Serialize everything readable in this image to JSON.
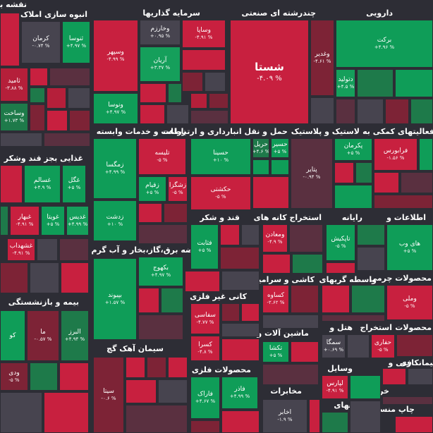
{
  "colors": {
    "background": "#2d2d35",
    "green_strong": "#0f9d58",
    "green": "#159f5b",
    "green_dark": "#1e7a4a",
    "green_muted": "#2e6e4c",
    "red_strong": "#c8203f",
    "red": "#b51f3a",
    "red_dark": "#7d2336",
    "red_muted": "#5a3040",
    "neutral": "#47444f"
  },
  "sectors": [
    {
      "label": "نقشه بازار"
    },
    {
      "label": "انبوه سازی املاک و مستغلات"
    },
    {
      "label": "سرمایه گذاریها"
    },
    {
      "label": "چندرشته ای صنعتی"
    },
    {
      "label": "دارویی"
    },
    {
      "label": "غذایی بجز قند وشکر"
    },
    {
      "label": "زراعت و خدمات وابسته"
    },
    {
      "label": "حمل و نقل انبارداری و ارتباطات"
    },
    {
      "label": "لاستیک و پلاستیک"
    },
    {
      "label": "فعالیتهای کمکی به"
    },
    {
      "label": "قند و شکر"
    },
    {
      "label": "استخراج کانه های"
    },
    {
      "label": "رایانه"
    },
    {
      "label": "اطلاعات و"
    },
    {
      "label": "عرضه برق،گاز،بخار و آب گرم"
    },
    {
      "label": "محصولات چرمی"
    },
    {
      "label": "بیمه و بازنشستگی"
    },
    {
      "label": "کاشی و سرامیک"
    },
    {
      "label": "واسطه گریهای"
    },
    {
      "label": "کانی غیر فلزی"
    },
    {
      "label": "هتل و"
    },
    {
      "label": "استخراج"
    },
    {
      "label": "محصولات"
    },
    {
      "label": "ماشین آلات و"
    },
    {
      "label": "سیمان آهک گچ"
    },
    {
      "label": "وسایل"
    },
    {
      "label": "فنی و"
    },
    {
      "label": "بیمانکاری"
    },
    {
      "label": "محصولات فلزی"
    },
    {
      "label": "مخابرات"
    },
    {
      "label": "دستگاههای"
    },
    {
      "label": "خرده"
    },
    {
      "label": "چاپ منسو"
    }
  ],
  "tiles": [
    {
      "symbol": "ثنوسا",
      "change": "+۴.۹۷ %"
    },
    {
      "symbol": "کرمان",
      "change": "-۰.۷۴ %"
    },
    {
      "symbol": "وخارزم",
      "change": "+۰.۹۵ %"
    },
    {
      "symbol": "وساپا",
      "change": "-۴.۹۱ %"
    },
    {
      "symbol": "وسپهر",
      "change": "-۴.۹۹ %"
    },
    {
      "symbol": "آریان",
      "change": "+۳.۳۷ %"
    },
    {
      "symbol": "ونوسا",
      "change": "+۴.۹۷ %"
    },
    {
      "symbol": "شستا",
      "change": "-۴.۰۹ %"
    },
    {
      "symbol": "وغدیر",
      "change": "-۴.۶۱ %"
    },
    {
      "symbol": "برکت",
      "change": "+۴.۹۶ %"
    },
    {
      "symbol": "دتولید",
      "change": "+۴.۵ %"
    },
    {
      "symbol": "ثامید",
      "change": "-۳.۸۸ %"
    },
    {
      "symbol": "وساخت",
      "change": "+۱.۷۳ %"
    },
    {
      "symbol": "زمگسا",
      "change": "+۴.۹۹ %"
    },
    {
      "symbol": "تلیسه",
      "change": "-۵ %"
    },
    {
      "symbol": "حسینا",
      "change": "+۱۰ %"
    },
    {
      "symbol": "حریل",
      "change": "+۴.۶ %"
    },
    {
      "symbol": "حسیر",
      "change": "+۵ %"
    },
    {
      "symbol": "پکرمان",
      "change": "+۵ %"
    },
    {
      "symbol": "فرابورس",
      "change": "-۱.۵۶ %"
    },
    {
      "symbol": "غسالم",
      "change": "+۴.۹ %"
    },
    {
      "symbol": "غگل",
      "change": "+۵ %"
    },
    {
      "symbol": "زقیام",
      "change": "+۵ %"
    },
    {
      "symbol": "زشگزا",
      "change": "-۵ %"
    },
    {
      "symbol": "حکشتی",
      "change": "-۵ %"
    },
    {
      "symbol": "پتایر",
      "change": "-۰.۹۴ %"
    },
    {
      "symbol": "غبهار",
      "change": "-۴.۹۱ %"
    },
    {
      "symbol": "غویتا",
      "change": "+۵ %"
    },
    {
      "symbol": "غدیس",
      "change": "+۴.۹۹ %"
    },
    {
      "symbol": "زدشت",
      "change": "+۱۰ %"
    },
    {
      "symbol": "ومعادن",
      "change": "-۴.۹ %"
    },
    {
      "symbol": "تاپکیش",
      "change": "-۵ %"
    },
    {
      "symbol": "های وب",
      "change": "+۵ %"
    },
    {
      "symbol": "غشهداب",
      "change": "-۴.۹۱ %"
    },
    {
      "symbol": "فثابت",
      "change": "+۵ %"
    },
    {
      "symbol": "بکهوج",
      "change": "+۴.۹۷ %"
    },
    {
      "symbol": "کساوه",
      "change": "-۲.۶۲ %"
    },
    {
      "symbol": "وملی",
      "change": "-۵ %"
    },
    {
      "symbol": "بپیوند",
      "change": "+۱.۵۷ %"
    },
    {
      "symbol": "کو",
      "change": ""
    },
    {
      "symbol": "ما",
      "change": "-۰.۵۷ %"
    },
    {
      "symbol": "البرز",
      "change": "+۴.۹۴ %"
    },
    {
      "symbol": "سفاسی",
      "change": "-۴.۷۷ %"
    },
    {
      "symbol": "سمگا",
      "change": "+۰.۶۹ %"
    },
    {
      "symbol": "حفاری",
      "change": "-۵ %"
    },
    {
      "symbol": "کسرا",
      "change": "-۴.۸ %"
    },
    {
      "symbol": "تکشا",
      "change": "+۵ %"
    },
    {
      "symbol": "ودی",
      "change": "-۵ %"
    },
    {
      "symbol": "سیتا",
      "change": "-۰.۶ %"
    },
    {
      "symbol": "فاذر",
      "change": "+۴.۹۹ %"
    },
    {
      "symbol": "لپارس",
      "change": "-۴.۹۱ %"
    },
    {
      "symbol": "فاراک",
      "change": "+۴.۶۷ %"
    },
    {
      "symbol": "اخابر",
      "change": "-۱.۹ %"
    }
  ]
}
